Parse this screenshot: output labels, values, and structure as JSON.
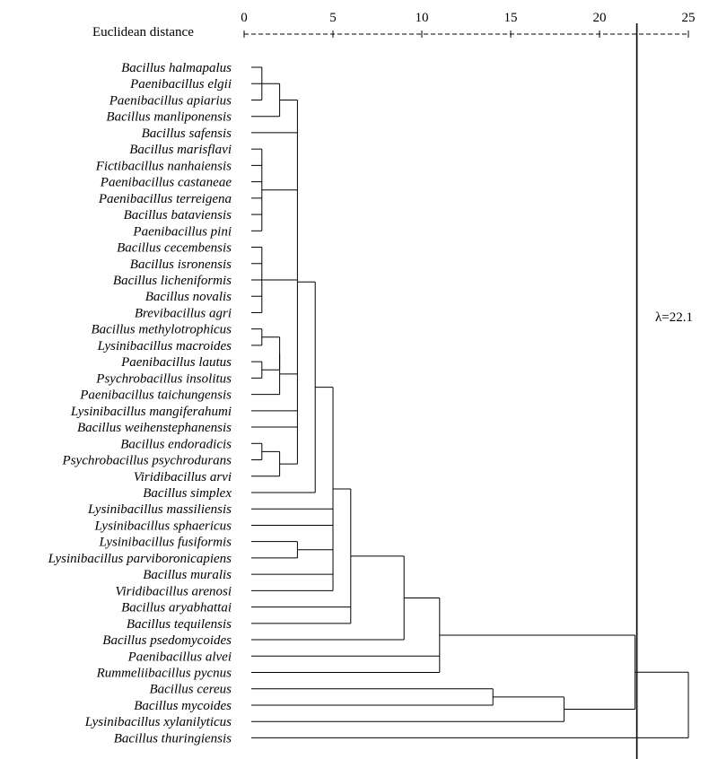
{
  "axis": {
    "title": "Euclidean distance",
    "ticks": [
      0,
      5,
      10,
      15,
      20,
      25
    ],
    "tick_labels": [
      "0",
      "5",
      "10",
      "15",
      "20",
      "25"
    ]
  },
  "threshold": {
    "label": "λ=22.1",
    "value": 22.1
  },
  "leaves": [
    "Bacillus halmapalus",
    "Paenibacillus elgii",
    "Paenibacillus apiarius",
    "Bacillus manliponensis",
    "Bacillus safensis",
    "Bacillus marisflavi",
    "Fictibacillus nanhaiensis",
    "Paenibacillus castaneae",
    "Paenibacillus terreigena",
    "Bacillus bataviensis",
    "Paenibacillus pini",
    "Bacillus cecembensis",
    "Bacillus isronensis",
    "Bacillus licheniformis",
    "Bacillus novalis",
    "Brevibacillus agri",
    "Bacillus methylotrophicus",
    "Lysinibacillus macroides",
    "Paenibacillus lautus",
    "Psychrobacillus insolitus",
    "Paenibacillus taichungensis",
    "Lysinibacillus mangiferahumi",
    "Bacillus weihenstephanensis",
    "Bacillus endoradicis",
    "Psychrobacillus psychrodurans",
    "Viridibacillus arvi",
    "Bacillus simplex",
    "Lysinibacillus massiliensis",
    "Lysinibacillus sphaericus",
    "Lysinibacillus fusiformis",
    "Lysinibacillus parviboronicapiens",
    "Bacillus muralis",
    "Viridibacillus arenosi",
    "Bacillus aryabhattai",
    "Bacillus tequilensis",
    "Bacillus psedomycoides",
    "Paenibacillus alvei",
    "Rummeliibacillus pycnus",
    "Bacillus cereus",
    "Bacillus mycoides",
    "Lysinibacillus xylanilyticus",
    "Bacillus thuringiensis"
  ],
  "merges": [
    {
      "id": "n1",
      "children": [
        0,
        1,
        2
      ],
      "height": 1
    },
    {
      "id": "n2",
      "children": [
        "n1",
        3
      ],
      "height": 2
    },
    {
      "id": "n3",
      "children": [
        5,
        6,
        7,
        8,
        9,
        10
      ],
      "height": 1
    },
    {
      "id": "n4",
      "children": [
        11,
        12,
        13,
        14,
        15
      ],
      "height": 1
    },
    {
      "id": "n5",
      "children": [
        16,
        17
      ],
      "height": 1
    },
    {
      "id": "n6",
      "children": [
        18,
        19
      ],
      "height": 1
    },
    {
      "id": "n7",
      "children": [
        "n5",
        "n6"
      ],
      "height": 2
    },
    {
      "id": "n8",
      "children": [
        "n7",
        20
      ],
      "height": 2
    },
    {
      "id": "n9",
      "children": [
        23,
        24
      ],
      "height": 1
    },
    {
      "id": "n10",
      "children": [
        "n9",
        25
      ],
      "height": 2
    },
    {
      "id": "n11",
      "children": [
        "n2",
        4,
        "n3",
        "n4",
        "n8",
        21,
        22,
        "n10"
      ],
      "height": 3
    },
    {
      "id": "n12",
      "children": [
        "n11",
        26
      ],
      "height": 4
    },
    {
      "id": "n13",
      "children": [
        29,
        30
      ],
      "height": 3
    },
    {
      "id": "n14",
      "children": [
        "n12",
        27,
        28,
        "n13",
        31,
        32
      ],
      "height": 5
    },
    {
      "id": "n15",
      "children": [
        "n14",
        33,
        34
      ],
      "height": 6
    },
    {
      "id": "n16",
      "children": [
        "n15",
        35
      ],
      "height": 9
    },
    {
      "id": "n17",
      "children": [
        "n16",
        36,
        37
      ],
      "height": 11
    },
    {
      "id": "n18",
      "children": [
        38,
        39
      ],
      "height": 14
    },
    {
      "id": "n19",
      "children": [
        "n18",
        40
      ],
      "height": 18
    },
    {
      "id": "n20",
      "children": [
        "n17",
        "n19"
      ],
      "height": 22
    },
    {
      "id": "n21",
      "children": [
        "n20",
        41
      ],
      "height": 25
    }
  ]
}
